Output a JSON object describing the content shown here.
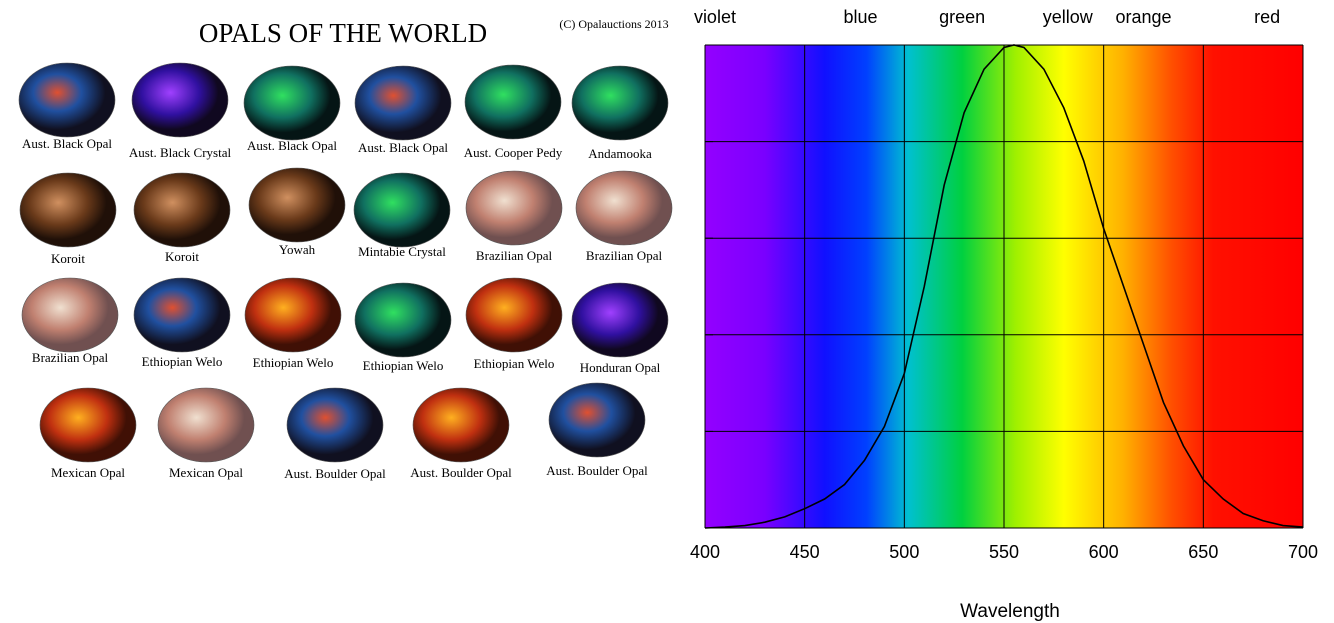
{
  "opals": {
    "title": "OPALS OF THE WORLD",
    "copyright": "(C) Opalauctions 2013",
    "labels": [
      "Aust. Black Opal",
      "Aust. Black Crystal",
      "Aust. Black Opal",
      "Aust. Black Opal",
      "Aust. Cooper Pedy",
      "Andamooka",
      "Koroit",
      "Koroit",
      "Yowah",
      "Mintabie Crystal",
      "Brazilian Opal",
      "Brazilian Opal",
      "Brazilian Opal",
      "Ethiopian Welo",
      "Ethiopian Welo",
      "Ethiopian Welo",
      "Ethiopian Welo",
      "Honduran Opal",
      "Mexican Opal",
      "Mexican Opal",
      "Aust. Boulder Opal",
      "Aust. Boulder Opal",
      "Aust. Boulder Opal"
    ]
  },
  "chart_data": {
    "type": "line",
    "xlabel": "Wavelength",
    "band_labels": [
      {
        "text": "violet",
        "x": 405
      },
      {
        "text": "blue",
        "x": 478
      },
      {
        "text": "green",
        "x": 529
      },
      {
        "text": "yellow",
        "x": 582
      },
      {
        "text": "orange",
        "x": 620
      },
      {
        "text": "red",
        "x": 682
      }
    ],
    "x": [
      400,
      410,
      420,
      430,
      440,
      450,
      460,
      470,
      480,
      490,
      500,
      510,
      520,
      530,
      540,
      550,
      555,
      560,
      570,
      580,
      590,
      600,
      610,
      620,
      630,
      640,
      650,
      660,
      670,
      680,
      690,
      700
    ],
    "values": [
      0.0,
      0.002,
      0.005,
      0.012,
      0.023,
      0.04,
      0.06,
      0.09,
      0.14,
      0.21,
      0.32,
      0.5,
      0.71,
      0.86,
      0.95,
      0.995,
      1.0,
      0.995,
      0.95,
      0.87,
      0.76,
      0.62,
      0.5,
      0.38,
      0.26,
      0.17,
      0.1,
      0.06,
      0.03,
      0.015,
      0.005,
      0.002
    ],
    "color": "#000000",
    "xlim": [
      400,
      700
    ],
    "xticks": [
      400,
      450,
      500,
      550,
      600,
      650,
      700
    ],
    "ylim": [
      0,
      1
    ],
    "yticks": [
      0,
      0.2,
      0.4,
      0.6,
      0.8,
      1
    ],
    "show_ytick_labels": false,
    "grid": true
  }
}
